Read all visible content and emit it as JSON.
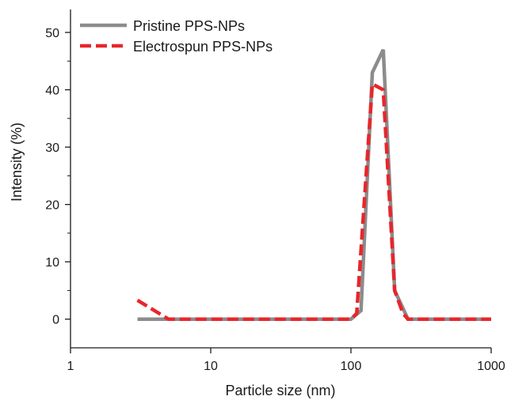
{
  "chart_data": {
    "type": "line",
    "title": "",
    "xlabel": "Particle size (nm)",
    "ylabel": "Intensity (%)",
    "xscale": "log",
    "xlim": [
      1,
      1000
    ],
    "ylim": [
      -5,
      54
    ],
    "x_ticks": [
      1,
      10,
      100,
      1000
    ],
    "x_tick_labels": [
      "1",
      "10",
      "100",
      "1000"
    ],
    "y_ticks": [
      0,
      10,
      20,
      30,
      40,
      50
    ],
    "y_tick_labels": [
      "0",
      "10",
      "20",
      "30",
      "40",
      "50"
    ],
    "grid": false,
    "legend_position": "top-left",
    "series": [
      {
        "name": "Pristine PPS-NPs",
        "color": "#8c8c8c",
        "line_style": "solid",
        "x": [
          3,
          5,
          100,
          118,
          142,
          170,
          205,
          255,
          1000
        ],
        "y": [
          0,
          0,
          0,
          1.5,
          43,
          47,
          5,
          0,
          0
        ]
      },
      {
        "name": "Electrospun PPS-NPs",
        "color": "#e8262b",
        "line_style": "dashed",
        "x": [
          3,
          5,
          100,
          110,
          142,
          170,
          205,
          235,
          255,
          1000
        ],
        "y": [
          3.3,
          0,
          0,
          1,
          41,
          40,
          5,
          1,
          0,
          0
        ]
      }
    ]
  }
}
